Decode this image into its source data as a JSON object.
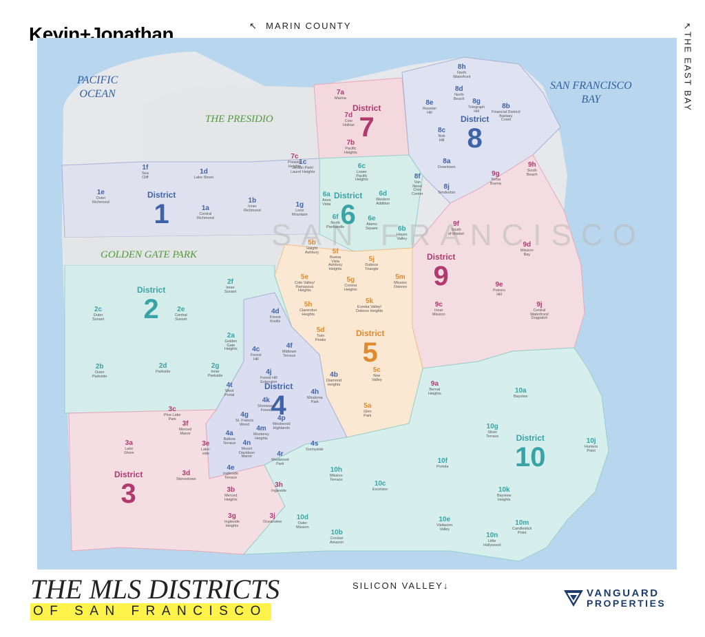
{
  "brand": "Kevin+Jonathan",
  "compass": {
    "marin": "MARIN COUNTY",
    "east_bay": "THE EAST BAY",
    "silicon_valley": "SILICON VALLEY"
  },
  "labels": {
    "pacific_ocean": "PACIFIC\nOCEAN",
    "sf_bay": "SAN FRANCISCO\nBAY",
    "presidio": "THE PRESIDIO",
    "golden_gate_park": "GOLDEN GATE PARK",
    "city": "SAN FRANCISCO"
  },
  "districts": [
    {
      "id": "1",
      "word": "District",
      "num": "1",
      "color": "#3f63a8"
    },
    {
      "id": "2",
      "word": "District",
      "num": "2",
      "color": "#3aa3a5"
    },
    {
      "id": "3",
      "word": "District",
      "num": "3",
      "color": "#b03a6e"
    },
    {
      "id": "4",
      "word": "District",
      "num": "4",
      "color": "#3f63a8"
    },
    {
      "id": "5",
      "word": "District",
      "num": "5",
      "color": "#e08a2e"
    },
    {
      "id": "6",
      "word": "District",
      "num": "6",
      "color": "#3aa3a5"
    },
    {
      "id": "7",
      "word": "District",
      "num": "7",
      "color": "#b03a6e"
    },
    {
      "id": "8",
      "word": "District",
      "num": "8",
      "color": "#3f63a8"
    },
    {
      "id": "9",
      "word": "District",
      "num": "9",
      "color": "#b03a6e"
    },
    {
      "id": "10",
      "word": "District",
      "num": "10",
      "color": "#3aa3a5"
    }
  ],
  "subdistricts": [
    {
      "code": "1a",
      "name": "Central\nRichmond",
      "color": "#3f63a8"
    },
    {
      "code": "1b",
      "name": "Inner\nRichmond",
      "color": "#3f63a8"
    },
    {
      "code": "1c",
      "name": "Jordan Park/\nLaurel Heights",
      "color": "#3f63a8"
    },
    {
      "code": "1d",
      "name": "Lake Street",
      "color": "#3f63a8"
    },
    {
      "code": "1e",
      "name": "Outer\nRichmond",
      "color": "#3f63a8"
    },
    {
      "code": "1f",
      "name": "Sea\nCliff",
      "color": "#3f63a8"
    },
    {
      "code": "1g",
      "name": "Lone\nMountain",
      "color": "#3f63a8"
    },
    {
      "code": "2a",
      "name": "Golden\nGate\nHeights",
      "color": "#3aa3a5"
    },
    {
      "code": "2b",
      "name": "Outer\nParkside",
      "color": "#3aa3a5"
    },
    {
      "code": "2c",
      "name": "Outer\nSunset",
      "color": "#3aa3a5"
    },
    {
      "code": "2d",
      "name": "Parkside",
      "color": "#3aa3a5"
    },
    {
      "code": "2e",
      "name": "Central\nSunset",
      "color": "#3aa3a5"
    },
    {
      "code": "2f",
      "name": "Inner\nSunset",
      "color": "#3aa3a5"
    },
    {
      "code": "2g",
      "name": "Inner\nParkside",
      "color": "#3aa3a5"
    },
    {
      "code": "3a",
      "name": "Lake\nShore",
      "color": "#b03a6e"
    },
    {
      "code": "3b",
      "name": "Merced\nHeights",
      "color": "#b03a6e"
    },
    {
      "code": "3c",
      "name": "Pine Lake\nPark",
      "color": "#b03a6e"
    },
    {
      "code": "3d",
      "name": "Stonestown",
      "color": "#b03a6e"
    },
    {
      "code": "3e",
      "name": "Lake-\nside",
      "color": "#b03a6e"
    },
    {
      "code": "3f",
      "name": "Merced\nManor",
      "color": "#b03a6e"
    },
    {
      "code": "3g",
      "name": "Ingleside\nHeights",
      "color": "#b03a6e"
    },
    {
      "code": "3h",
      "name": "Ingleside",
      "color": "#b03a6e"
    },
    {
      "code": "3j",
      "name": "Oceanview",
      "color": "#b03a6e"
    },
    {
      "code": "4a",
      "name": "Balboa\nTerrace",
      "color": "#3f63a8"
    },
    {
      "code": "4b",
      "name": "Diamond\nHeights",
      "color": "#3f63a8"
    },
    {
      "code": "4c",
      "name": "Forest\nHill",
      "color": "#3f63a8"
    },
    {
      "code": "4d",
      "name": "Forest\nKnolls",
      "color": "#3f63a8"
    },
    {
      "code": "4e",
      "name": "Ingleside\nTerrace",
      "color": "#3f63a8"
    },
    {
      "code": "4f",
      "name": "Midtown\nTerrace",
      "color": "#3f63a8"
    },
    {
      "code": "4g",
      "name": "St. Francis\nWood",
      "color": "#3f63a8"
    },
    {
      "code": "4h",
      "name": "Miraloma\nPark",
      "color": "#3f63a8"
    },
    {
      "code": "4j",
      "name": "Forest Hill\nExtension",
      "color": "#3f63a8"
    },
    {
      "code": "4k",
      "name": "Sherwood\nForest",
      "color": "#3f63a8"
    },
    {
      "code": "4m",
      "name": "Monterey\nHeights",
      "color": "#3f63a8"
    },
    {
      "code": "4n",
      "name": "Mount\nDavidson\nManor",
      "color": "#3f63a8"
    },
    {
      "code": "4p",
      "name": "Westwood\nHighlands",
      "color": "#3f63a8"
    },
    {
      "code": "4r",
      "name": "Westwood\nPark",
      "color": "#3f63a8"
    },
    {
      "code": "4s",
      "name": "Sunnyside",
      "color": "#3f63a8"
    },
    {
      "code": "4t",
      "name": "West\nPortal",
      "color": "#3f63a8"
    },
    {
      "code": "5a",
      "name": "Glen\nPark",
      "color": "#e08a2e"
    },
    {
      "code": "5b",
      "name": "Haight\nAshbury",
      "color": "#e08a2e"
    },
    {
      "code": "5c",
      "name": "Noe\nValley",
      "color": "#e08a2e"
    },
    {
      "code": "5d",
      "name": "Twin\nPeaks",
      "color": "#e08a2e"
    },
    {
      "code": "5e",
      "name": "Cole Valley/\nParnassus\nHeights",
      "color": "#e08a2e"
    },
    {
      "code": "5f",
      "name": "Buena\nVista\nAshbury\nHeights",
      "color": "#e08a2e"
    },
    {
      "code": "5g",
      "name": "Corona\nHeights",
      "color": "#e08a2e"
    },
    {
      "code": "5h",
      "name": "Clarendon\nHeights",
      "color": "#e08a2e"
    },
    {
      "code": "5j",
      "name": "Duboce\nTriangle",
      "color": "#e08a2e"
    },
    {
      "code": "5k",
      "name": "Eureka Valley/\nDolores Heights",
      "color": "#e08a2e"
    },
    {
      "code": "5m",
      "name": "Mission\nDolores",
      "color": "#e08a2e"
    },
    {
      "code": "6a",
      "name": "Anza\nVista",
      "color": "#3aa3a5"
    },
    {
      "code": "6b",
      "name": "Hayes\nValley",
      "color": "#3aa3a5"
    },
    {
      "code": "6c",
      "name": "Lower\nPacific\nHeights",
      "color": "#3aa3a5"
    },
    {
      "code": "6d",
      "name": "Western\nAddition",
      "color": "#3aa3a5"
    },
    {
      "code": "6e",
      "name": "Alamo\nSquare",
      "color": "#3aa3a5"
    },
    {
      "code": "6f",
      "name": "North\nPanhandle",
      "color": "#3aa3a5"
    },
    {
      "code": "7a",
      "name": "Marina",
      "color": "#b03a6e"
    },
    {
      "code": "7b",
      "name": "Pacific\nHeights",
      "color": "#b03a6e"
    },
    {
      "code": "7c",
      "name": "Presidio\nHeights",
      "color": "#b03a6e"
    },
    {
      "code": "7d",
      "name": "Cow\nHollow",
      "color": "#b03a6e"
    },
    {
      "code": "8a",
      "name": "Downtown",
      "color": "#3f63a8"
    },
    {
      "code": "8b",
      "name": "Financial District/\nBarbary\nCoast",
      "color": "#3f63a8"
    },
    {
      "code": "8c",
      "name": "Nob\nHill",
      "color": "#3f63a8"
    },
    {
      "code": "8d",
      "name": "North\nBeach",
      "color": "#3f63a8"
    },
    {
      "code": "8e",
      "name": "Russian\nHill",
      "color": "#3f63a8"
    },
    {
      "code": "8f",
      "name": "Van\nNess/\nCivic\nCenter",
      "color": "#3f63a8"
    },
    {
      "code": "8g",
      "name": "Telegraph\nHill",
      "color": "#3f63a8"
    },
    {
      "code": "8h",
      "name": "North\nWaterfront",
      "color": "#3f63a8"
    },
    {
      "code": "8j",
      "name": "Tenderloin",
      "color": "#3f63a8"
    },
    {
      "code": "9a",
      "name": "Bernal\nHeights",
      "color": "#b03a6e"
    },
    {
      "code": "9c",
      "name": "Inner\nMission",
      "color": "#b03a6e"
    },
    {
      "code": "9d",
      "name": "Mission\nBay",
      "color": "#b03a6e"
    },
    {
      "code": "9e",
      "name": "Potrero\nHill",
      "color": "#b03a6e"
    },
    {
      "code": "9f",
      "name": "South\nof Market",
      "color": "#b03a6e"
    },
    {
      "code": "9g",
      "name": "Yerba\nBuena",
      "color": "#b03a6e"
    },
    {
      "code": "9h",
      "name": "South\nBeach",
      "color": "#b03a6e"
    },
    {
      "code": "9j",
      "name": "Central\nWaterfront/\nDogpatch",
      "color": "#b03a6e"
    },
    {
      "code": "10a",
      "name": "Bayview",
      "color": "#3aa3a5"
    },
    {
      "code": "10b",
      "name": "Crocker\nAmazon",
      "color": "#3aa3a5"
    },
    {
      "code": "10c",
      "name": "Excelsior",
      "color": "#3aa3a5"
    },
    {
      "code": "10d",
      "name": "Outer\nMission",
      "color": "#3aa3a5"
    },
    {
      "code": "10e",
      "name": "Visitacion\nValley",
      "color": "#3aa3a5"
    },
    {
      "code": "10f",
      "name": "Portola",
      "color": "#3aa3a5"
    },
    {
      "code": "10g",
      "name": "Silver\nTerrace",
      "color": "#3aa3a5"
    },
    {
      "code": "10h",
      "name": "Mission\nTerrace",
      "color": "#3aa3a5"
    },
    {
      "code": "10j",
      "name": "Hunters\nPoint",
      "color": "#3aa3a5"
    },
    {
      "code": "10k",
      "name": "Bayview\nHeights",
      "color": "#3aa3a5"
    },
    {
      "code": "10m",
      "name": "Candlestick\nPoint",
      "color": "#3aa3a5"
    },
    {
      "code": "10n",
      "name": "Little\nHollywood",
      "color": "#3aa3a5"
    }
  ],
  "footer": {
    "title": "THE MLS DISTRICTS",
    "subtitle": "OF SAN FRANCISCO",
    "logo_line1": "VANGUARD",
    "logo_line2": "PROPERTIES",
    "logo_color": "#1d3c6b",
    "highlight_color": "#fef34a"
  }
}
